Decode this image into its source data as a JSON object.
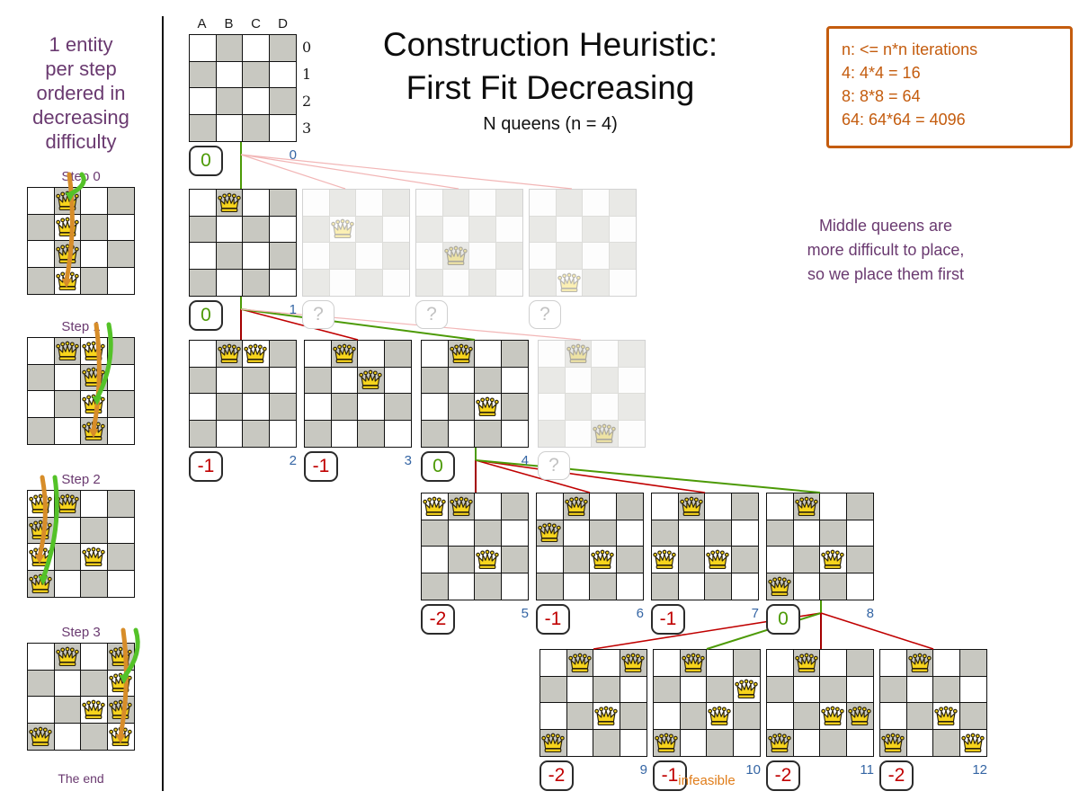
{
  "colors": {
    "purple": "#6a3a70",
    "orange": "#c45c0e",
    "infeasible_orange": "#e07d1a",
    "blue": "#3465a4",
    "green": "#4c9a06",
    "red": "#c00000",
    "dark_red": "#a40000",
    "pink": "#f2b6b6",
    "gray_cell": "#c8c8c1",
    "queen_gold": "#f7d41c",
    "arrow_green": "#54c228",
    "arrow_orange": "#d78d29"
  },
  "title": {
    "line1": "Construction Heuristic:",
    "line2": "First Fit Decreasing",
    "subtitle": "N queens (n = 4)"
  },
  "sidebar": {
    "intro_lines": [
      "1 entity",
      "per step",
      "ordered in",
      "decreasing",
      "difficulty"
    ],
    "steps": [
      {
        "label": "Step 0",
        "queens": [
          "B0",
          "B1",
          "B2",
          "B3"
        ],
        "orange_arrow": {
          "col": "B",
          "to_row": 3
        },
        "green_arrow": {
          "col": "B",
          "to_row": 0
        }
      },
      {
        "label": "Step 1",
        "queens": [
          "B0",
          "C0",
          "C1",
          "C2",
          "C3"
        ],
        "orange_arrow": {
          "col": "C",
          "to_row": 3
        },
        "green_arrow": {
          "col": "C",
          "to_row": 2
        }
      },
      {
        "label": "Step 2",
        "queens": [
          "A0",
          "B0",
          "A1",
          "A2",
          "C2",
          "A3"
        ],
        "orange_arrow": {
          "col": "A",
          "to_row": 2
        },
        "green_arrow": {
          "col": "A",
          "to_row": 3
        }
      },
      {
        "label": "Step 3",
        "queens": [
          "B0",
          "D0",
          "D1",
          "C2",
          "D2",
          "A3",
          "D3"
        ],
        "orange_arrow": {
          "col": "D",
          "to_row": 3
        },
        "green_arrow": {
          "col": "D",
          "to_row": 1
        }
      }
    ],
    "footer": "The end"
  },
  "infobox": {
    "lines": [
      "n: <= n*n iterations",
      "4: 4*4 = 16",
      "8: 8*8 = 64",
      "64: 64*64 = 4096"
    ]
  },
  "note_lines": [
    "Middle queens are",
    "more difficult to place,",
    "so we place them first"
  ],
  "root_board": {
    "col_labels": [
      "A",
      "B",
      "C",
      "D"
    ],
    "row_labels": [
      "0",
      "1",
      "2",
      "3"
    ],
    "queens": [],
    "score": "0",
    "score_type": "good",
    "iteration": "0"
  },
  "tree_rows": [
    {
      "boards": [
        {
          "queens": [
            "B0"
          ],
          "faded": false,
          "score": "0",
          "score_type": "good",
          "iteration": "1"
        },
        {
          "queens": [
            "B1"
          ],
          "faded": true,
          "score": "?",
          "score_type": "unknown",
          "iteration": ""
        },
        {
          "queens": [
            "B2"
          ],
          "faded": true,
          "score": "?",
          "score_type": "unknown",
          "iteration": ""
        },
        {
          "queens": [
            "B3"
          ],
          "faded": true,
          "score": "?",
          "score_type": "unknown",
          "iteration": ""
        }
      ]
    },
    {
      "boards": [
        {
          "queens": [
            "B0",
            "C0"
          ],
          "faded": false,
          "score": "-1",
          "score_type": "bad",
          "iteration": "2"
        },
        {
          "queens": [
            "B0",
            "C1"
          ],
          "faded": false,
          "score": "-1",
          "score_type": "bad",
          "iteration": "3"
        },
        {
          "queens": [
            "B0",
            "C2"
          ],
          "faded": false,
          "score": "0",
          "score_type": "good",
          "iteration": "4"
        },
        {
          "queens": [
            "B0",
            "C3"
          ],
          "faded": true,
          "score": "?",
          "score_type": "unknown",
          "iteration": ""
        }
      ]
    },
    {
      "boards": [
        {
          "queens": [
            "A0",
            "B0",
            "C2"
          ],
          "faded": false,
          "score": "-2",
          "score_type": "bad",
          "iteration": "5"
        },
        {
          "queens": [
            "B0",
            "A1",
            "C2"
          ],
          "faded": false,
          "score": "-1",
          "score_type": "bad",
          "iteration": "6"
        },
        {
          "queens": [
            "B0",
            "A2",
            "C2"
          ],
          "faded": false,
          "score": "-1",
          "score_type": "bad",
          "iteration": "7"
        },
        {
          "queens": [
            "B0",
            "C2",
            "A3"
          ],
          "faded": false,
          "score": "0",
          "score_type": "good",
          "iteration": "8"
        }
      ]
    },
    {
      "boards": [
        {
          "queens": [
            "B0",
            "D0",
            "C2",
            "A3"
          ],
          "faded": false,
          "score": "-2",
          "score_type": "bad",
          "iteration": "9"
        },
        {
          "queens": [
            "B0",
            "D1",
            "C2",
            "A3"
          ],
          "faded": false,
          "score": "-1",
          "score_type": "bad",
          "iteration": "10",
          "note": "infeasible"
        },
        {
          "queens": [
            "B0",
            "C2",
            "D2",
            "A3"
          ],
          "faded": false,
          "score": "-2",
          "score_type": "bad",
          "iteration": "11"
        },
        {
          "queens": [
            "B0",
            "C2",
            "A3",
            "D3"
          ],
          "faded": false,
          "score": "-2",
          "score_type": "bad",
          "iteration": "12"
        }
      ]
    }
  ],
  "edges": [
    {
      "from_iteration": "0",
      "targets": [
        {
          "row": 0,
          "board": 0,
          "status": "selected"
        },
        {
          "row": 0,
          "board": 1,
          "status": "unevaluated"
        },
        {
          "row": 0,
          "board": 2,
          "status": "unevaluated"
        },
        {
          "row": 0,
          "board": 3,
          "status": "unevaluated"
        }
      ]
    },
    {
      "from_iteration": "1",
      "targets": [
        {
          "row": 1,
          "board": 0,
          "status": "rejected"
        },
        {
          "row": 1,
          "board": 1,
          "status": "rejected"
        },
        {
          "row": 1,
          "board": 2,
          "status": "selected"
        },
        {
          "row": 1,
          "board": 3,
          "status": "unevaluated"
        }
      ]
    },
    {
      "from_iteration": "4",
      "targets": [
        {
          "row": 2,
          "board": 0,
          "status": "rejected"
        },
        {
          "row": 2,
          "board": 1,
          "status": "rejected"
        },
        {
          "row": 2,
          "board": 2,
          "status": "rejected"
        },
        {
          "row": 2,
          "board": 3,
          "status": "selected"
        }
      ]
    },
    {
      "from_iteration": "8",
      "targets": [
        {
          "row": 3,
          "board": 0,
          "status": "rejected"
        },
        {
          "row": 3,
          "board": 1,
          "status": "selected"
        },
        {
          "row": 3,
          "board": 2,
          "status": "rejected"
        },
        {
          "row": 3,
          "board": 3,
          "status": "rejected"
        }
      ]
    }
  ]
}
